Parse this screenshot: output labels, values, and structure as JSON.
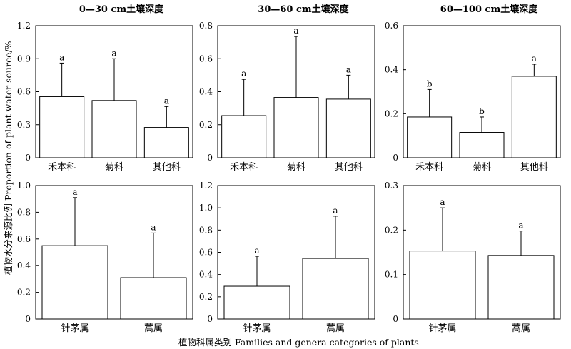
{
  "figure": {
    "ylabel": "植物水分来源比例 Proportion of plant water source/%",
    "xlabel": "植物科属类别 Families and genera categories of plants",
    "column_titles": [
      "0—30 cm土壤深度",
      "30—60 cm土壤深度",
      "60—100 cm土壤深度"
    ]
  },
  "chart_data": [
    {
      "type": "bar",
      "title": "0—30 cm土壤深度",
      "categories": [
        "禾本科",
        "菊科",
        "其他科"
      ],
      "values": [
        0.555,
        0.52,
        0.275
      ],
      "errors": [
        0.305,
        0.38,
        0.19
      ],
      "letters": [
        "a",
        "a",
        "a"
      ],
      "ylim": [
        0,
        1.2
      ],
      "yticks": [
        "0",
        "0.3",
        "0.6",
        "0.9",
        "1.2"
      ],
      "ytick_values": [
        0,
        0.3,
        0.6,
        0.9,
        1.2
      ]
    },
    {
      "type": "bar",
      "title": "30—60 cm土壤深度",
      "categories": [
        "禾本科",
        "菊科",
        "其他科"
      ],
      "values": [
        0.255,
        0.365,
        0.355
      ],
      "errors": [
        0.22,
        0.37,
        0.145
      ],
      "letters": [
        "a",
        "a",
        "a"
      ],
      "ylim": [
        0,
        0.8
      ],
      "yticks": [
        "0",
        "0.2",
        "0.4",
        "0.6",
        "0.8"
      ],
      "ytick_values": [
        0,
        0.2,
        0.4,
        0.6,
        0.8
      ]
    },
    {
      "type": "bar",
      "title": "60—100 cm土壤深度",
      "categories": [
        "禾本科",
        "菊科",
        "其他科"
      ],
      "values": [
        0.185,
        0.115,
        0.37
      ],
      "errors": [
        0.125,
        0.07,
        0.055
      ],
      "letters": [
        "b",
        "b",
        "a"
      ],
      "ylim": [
        0,
        0.6
      ],
      "yticks": [
        "0",
        "0.2",
        "0.4",
        "0.6"
      ],
      "ytick_values": [
        0,
        0.2,
        0.4,
        0.6
      ]
    },
    {
      "type": "bar",
      "title": "",
      "categories": [
        "针茅属",
        "蒿属"
      ],
      "values": [
        0.55,
        0.31
      ],
      "errors": [
        0.36,
        0.335
      ],
      "letters": [
        "a",
        "a"
      ],
      "ylim": [
        0,
        1.0
      ],
      "yticks": [
        "0",
        "0.2",
        "0.4",
        "0.6",
        "0.8",
        "1.0"
      ],
      "ytick_values": [
        0,
        0.2,
        0.4,
        0.6,
        0.8,
        1.0
      ]
    },
    {
      "type": "bar",
      "title": "",
      "categories": [
        "针茅属",
        "蒿属"
      ],
      "values": [
        0.295,
        0.545
      ],
      "errors": [
        0.27,
        0.38
      ],
      "letters": [
        "a",
        "a"
      ],
      "ylim": [
        0,
        1.2
      ],
      "yticks": [
        "0",
        "0.2",
        "0.4",
        "0.6",
        "0.8",
        "1.0",
        "1.2"
      ],
      "ytick_values": [
        0,
        0.2,
        0.4,
        0.6,
        0.8,
        1.0,
        1.2
      ]
    },
    {
      "type": "bar",
      "title": "",
      "categories": [
        "针茅属",
        "蒿属"
      ],
      "values": [
        0.153,
        0.143
      ],
      "errors": [
        0.097,
        0.055
      ],
      "letters": [
        "a",
        "a"
      ],
      "ylim": [
        0,
        0.3
      ],
      "yticks": [
        "0",
        "0.1",
        "0.2",
        "0.3"
      ],
      "ytick_values": [
        0,
        0.1,
        0.2,
        0.3
      ]
    }
  ]
}
